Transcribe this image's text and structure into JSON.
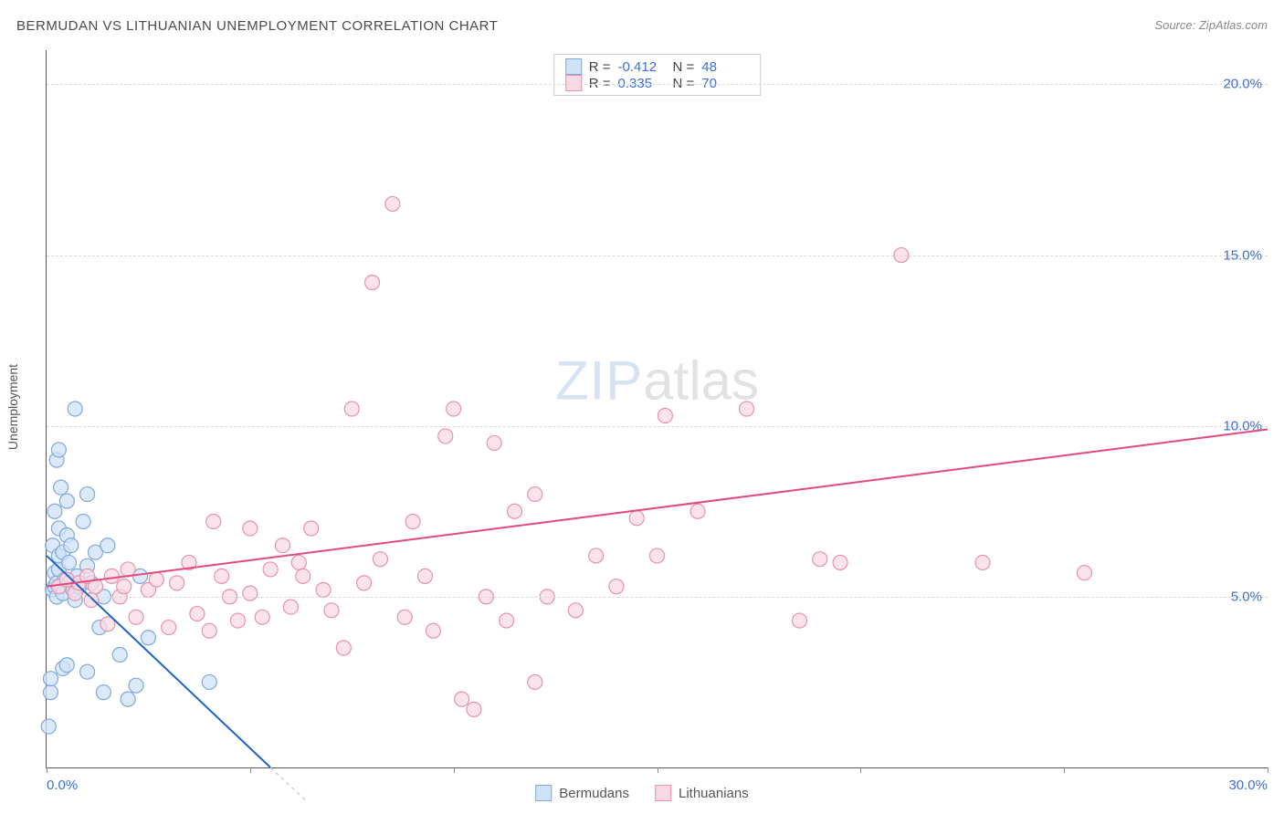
{
  "header": {
    "title": "BERMUDAN VS LITHUANIAN UNEMPLOYMENT CORRELATION CHART",
    "source_label": "Source:",
    "source_value": "ZipAtlas.com"
  },
  "ylabel": "Unemployment",
  "watermark": {
    "zip": "ZIP",
    "atlas": "atlas"
  },
  "chart": {
    "type": "scatter",
    "xlim": [
      0,
      30
    ],
    "ylim": [
      0,
      21
    ],
    "xticks": [
      0,
      5,
      10,
      15,
      20,
      25,
      30
    ],
    "xtick_labels": [
      "0.0%",
      "",
      "",
      "",
      "",
      "",
      "30.0%"
    ],
    "yticks": [
      5,
      10,
      15,
      20
    ],
    "ytick_labels": [
      "5.0%",
      "10.0%",
      "15.0%",
      "20.0%"
    ],
    "grid_dash_color": "#d8d8d8",
    "background_color": "#ffffff",
    "axis_color": "#555555",
    "marker_radius": 8,
    "marker_stroke_width": 1.2,
    "line_width": 2,
    "series": [
      {
        "name": "Bermudans",
        "fill": "#cfe2f7",
        "stroke": "#7da9db",
        "line_color": "#1e63c9",
        "R": "-0.412",
        "N": "48",
        "trend": {
          "x1": 0,
          "y1": 6.2,
          "x2": 5.5,
          "y2": 0
        },
        "trend_ext": {
          "x1": 5.5,
          "y1": 0,
          "x2": 6.4,
          "y2": -1.0
        },
        "points": [
          [
            0.05,
            1.2
          ],
          [
            0.1,
            2.2
          ],
          [
            0.1,
            2.6
          ],
          [
            0.15,
            5.2
          ],
          [
            0.15,
            6.5
          ],
          [
            0.2,
            5.3
          ],
          [
            0.2,
            5.7
          ],
          [
            0.2,
            7.5
          ],
          [
            0.25,
            5.0
          ],
          [
            0.25,
            5.4
          ],
          [
            0.25,
            9.0
          ],
          [
            0.3,
            5.8
          ],
          [
            0.3,
            6.2
          ],
          [
            0.3,
            7.0
          ],
          [
            0.3,
            9.3
          ],
          [
            0.35,
            5.3
          ],
          [
            0.35,
            8.2
          ],
          [
            0.4,
            2.9
          ],
          [
            0.4,
            5.1
          ],
          [
            0.4,
            6.3
          ],
          [
            0.45,
            5.5
          ],
          [
            0.5,
            6.8
          ],
          [
            0.5,
            7.8
          ],
          [
            0.55,
            5.4
          ],
          [
            0.55,
            6.0
          ],
          [
            0.6,
            6.5
          ],
          [
            0.65,
            5.2
          ],
          [
            0.7,
            4.9
          ],
          [
            0.7,
            10.5
          ],
          [
            0.75,
            5.6
          ],
          [
            0.8,
            5.3
          ],
          [
            0.9,
            7.2
          ],
          [
            1.0,
            5.9
          ],
          [
            1.0,
            8.0
          ],
          [
            1.1,
            5.4
          ],
          [
            1.2,
            6.3
          ],
          [
            1.3,
            4.1
          ],
          [
            1.4,
            2.2
          ],
          [
            1.4,
            5.0
          ],
          [
            1.5,
            6.5
          ],
          [
            1.8,
            3.3
          ],
          [
            2.0,
            2.0
          ],
          [
            2.2,
            2.4
          ],
          [
            2.3,
            5.6
          ],
          [
            2.5,
            3.8
          ],
          [
            4.0,
            2.5
          ],
          [
            0.5,
            3.0
          ],
          [
            1.0,
            2.8
          ]
        ]
      },
      {
        "name": "Lithuanians",
        "fill": "#f9d9e3",
        "stroke": "#e791ae",
        "line_color": "#e24a7d",
        "R": "0.335",
        "N": "70",
        "trend": {
          "x1": 0,
          "y1": 5.3,
          "x2": 30,
          "y2": 9.9
        },
        "points": [
          [
            0.3,
            5.3
          ],
          [
            0.5,
            5.5
          ],
          [
            0.7,
            5.1
          ],
          [
            0.8,
            5.4
          ],
          [
            1.0,
            5.6
          ],
          [
            1.1,
            4.9
          ],
          [
            1.2,
            5.3
          ],
          [
            1.5,
            4.2
          ],
          [
            1.6,
            5.6
          ],
          [
            1.8,
            5.0
          ],
          [
            1.9,
            5.3
          ],
          [
            2.0,
            5.8
          ],
          [
            2.2,
            4.4
          ],
          [
            2.5,
            5.2
          ],
          [
            2.7,
            5.5
          ],
          [
            3.0,
            4.1
          ],
          [
            3.2,
            5.4
          ],
          [
            3.5,
            6.0
          ],
          [
            3.7,
            4.5
          ],
          [
            4.0,
            4.0
          ],
          [
            4.1,
            7.2
          ],
          [
            4.3,
            5.6
          ],
          [
            4.7,
            4.3
          ],
          [
            5.0,
            5.1
          ],
          [
            5.0,
            7.0
          ],
          [
            5.3,
            4.4
          ],
          [
            5.5,
            5.8
          ],
          [
            5.8,
            6.5
          ],
          [
            6.0,
            4.7
          ],
          [
            6.2,
            6.0
          ],
          [
            6.5,
            7.0
          ],
          [
            6.8,
            5.2
          ],
          [
            7.0,
            4.6
          ],
          [
            7.3,
            3.5
          ],
          [
            7.5,
            10.5
          ],
          [
            7.8,
            5.4
          ],
          [
            8.0,
            14.2
          ],
          [
            8.2,
            6.1
          ],
          [
            8.5,
            16.5
          ],
          [
            8.8,
            4.4
          ],
          [
            9.0,
            7.2
          ],
          [
            9.3,
            5.6
          ],
          [
            9.5,
            4.0
          ],
          [
            9.8,
            9.7
          ],
          [
            10.0,
            10.5
          ],
          [
            10.2,
            2.0
          ],
          [
            10.5,
            1.7
          ],
          [
            10.8,
            5.0
          ],
          [
            11.0,
            9.5
          ],
          [
            11.3,
            4.3
          ],
          [
            11.5,
            7.5
          ],
          [
            12.0,
            8.0
          ],
          [
            12.0,
            2.5
          ],
          [
            12.3,
            5.0
          ],
          [
            13.0,
            4.6
          ],
          [
            13.5,
            6.2
          ],
          [
            14.0,
            5.3
          ],
          [
            14.5,
            7.3
          ],
          [
            15.0,
            6.2
          ],
          [
            15.2,
            10.3
          ],
          [
            16.0,
            7.5
          ],
          [
            17.2,
            10.5
          ],
          [
            18.5,
            4.3
          ],
          [
            19.0,
            6.1
          ],
          [
            19.5,
            6.0
          ],
          [
            21.0,
            15.0
          ],
          [
            23.0,
            6.0
          ],
          [
            25.5,
            5.7
          ],
          [
            4.5,
            5.0
          ],
          [
            6.3,
            5.6
          ]
        ]
      }
    ]
  },
  "legend_bottom": [
    {
      "label": "Bermudans",
      "fill": "#cfe2f7",
      "stroke": "#7da9db"
    },
    {
      "label": "Lithuanians",
      "fill": "#f9d9e3",
      "stroke": "#e791ae"
    }
  ],
  "colors": {
    "title": "#4a4a4a",
    "axis_label_blue": "#3b6fd6",
    "source_gray": "#888888"
  }
}
